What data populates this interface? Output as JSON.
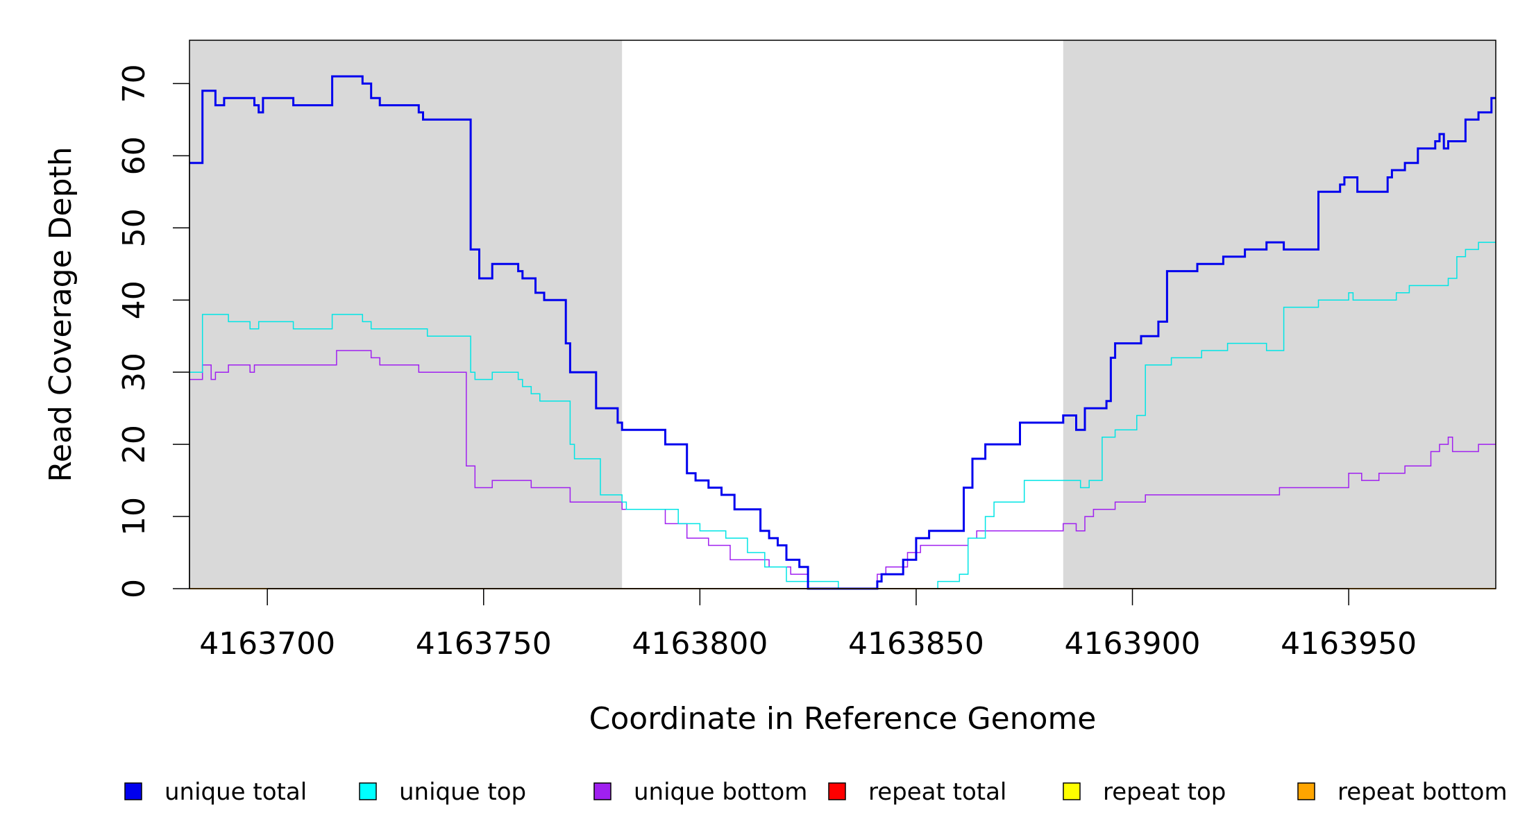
{
  "chart_data": {
    "type": "line",
    "title": "",
    "xlabel": "Coordinate in Reference Genome",
    "ylabel": "Read Coverage Depth",
    "xlim": [
      4163682,
      4163984
    ],
    "ylim": [
      0,
      76
    ],
    "x_ticks": [
      4163700,
      4163750,
      4163800,
      4163850,
      4163900,
      4163950
    ],
    "x_tick_labels": [
      "4163700",
      "4163750",
      "4163800",
      "4163850",
      "4163900",
      "4163950"
    ],
    "y_ticks": [
      0,
      10,
      20,
      30,
      40,
      50,
      60,
      70
    ],
    "y_tick_labels": [
      "0",
      "10",
      "20",
      "30",
      "40",
      "50",
      "60",
      "70"
    ],
    "shaded_regions": [
      {
        "from": 4163682,
        "to": 4163782,
        "color": "#d9d9d9"
      },
      {
        "from": 4163884,
        "to": 4163984,
        "color": "#d9d9d9"
      }
    ],
    "legend_position": "bottom",
    "series": [
      {
        "name": "unique total",
        "color": "#0000ee",
        "width": 3,
        "x": [
          4163682,
          4163685,
          4163688,
          4163690,
          4163691,
          4163697,
          4163698,
          4163699,
          4163706,
          4163715,
          4163722,
          4163724,
          4163726,
          4163730,
          4163735,
          4163736,
          4163737,
          4163747,
          4163749,
          4163752,
          4163758,
          4163759,
          4163762,
          4163764,
          4163769,
          4163770,
          4163776,
          4163781,
          4163782,
          4163783,
          4163792,
          4163797,
          4163799,
          4163802,
          4163805,
          4163808,
          4163814,
          4163816,
          4163818,
          4163820,
          4163823,
          4163825,
          4163832,
          4163841,
          4163842,
          4163847,
          4163850,
          4163853,
          4163860,
          4163861,
          4163863,
          4163866,
          4163874,
          4163884,
          4163887,
          4163889,
          4163894,
          4163895,
          4163896,
          4163898,
          4163902,
          4163906,
          4163908,
          4163915,
          4163921,
          4163926,
          4163931,
          4163935,
          4163943,
          4163948,
          4163949,
          4163952,
          4163959,
          4163960,
          4163963,
          4163966,
          4163970,
          4163971,
          4163972,
          4163973,
          4163977,
          4163980,
          4163983
        ],
        "y": [
          59,
          69,
          67,
          68,
          68,
          67,
          66,
          68,
          67,
          71,
          70,
          68,
          67,
          67,
          66,
          65,
          65,
          47,
          43,
          45,
          44,
          43,
          41,
          40,
          34,
          30,
          25,
          23,
          22,
          22,
          20,
          16,
          15,
          14,
          13,
          11,
          8,
          7,
          6,
          4,
          3,
          0,
          0,
          1,
          2,
          4,
          7,
          8,
          8,
          14,
          18,
          20,
          23,
          24,
          22,
          25,
          26,
          32,
          34,
          34,
          35,
          37,
          44,
          45,
          46,
          47,
          48,
          47,
          55,
          56,
          57,
          55,
          57,
          58,
          59,
          61,
          62,
          63,
          61,
          62,
          65,
          66,
          68
        ]
      },
      {
        "name": "unique top",
        "color": "#00e5e5",
        "width": 1.5,
        "x": [
          4163682,
          4163685,
          4163691,
          4163696,
          4163698,
          4163706,
          4163715,
          4163722,
          4163724,
          4163737,
          4163746,
          4163747,
          4163748,
          4163752,
          4163758,
          4163759,
          4163761,
          4163763,
          4163765,
          4163770,
          4163771,
          4163777,
          4163782,
          4163783,
          4163793,
          4163795,
          4163800,
          4163806,
          4163811,
          4163815,
          4163820,
          4163832,
          4163842,
          4163849,
          4163855,
          4163860,
          4163862,
          4163866,
          4163868,
          4163875,
          4163884,
          4163888,
          4163890,
          4163893,
          4163896,
          4163898,
          4163901,
          4163903,
          4163909,
          4163916,
          4163922,
          4163931,
          4163935,
          4163943,
          4163949,
          4163950,
          4163951,
          4163961,
          4163964,
          4163973,
          4163975,
          4163977,
          4163980,
          4163984
        ],
        "y": [
          30,
          38,
          37,
          36,
          37,
          36,
          38,
          37,
          36,
          35,
          35,
          30,
          29,
          30,
          29,
          28,
          27,
          26,
          26,
          20,
          18,
          13,
          12,
          11,
          11,
          9,
          8,
          7,
          5,
          3,
          1,
          0,
          0,
          0,
          1,
          2,
          7,
          10,
          12,
          15,
          15,
          14,
          15,
          21,
          22,
          22,
          24,
          31,
          32,
          33,
          34,
          33,
          39,
          40,
          40,
          41,
          40,
          41,
          42,
          43,
          46,
          47,
          48,
          48
        ]
      },
      {
        "name": "unique bottom",
        "color": "#a020f0",
        "width": 1.5,
        "x": [
          4163682,
          4163685,
          4163687,
          4163688,
          4163689,
          4163691,
          4163696,
          4163697,
          4163707,
          4163716,
          4163724,
          4163726,
          4163735,
          4163746,
          4163748,
          4163752,
          4163761,
          4163770,
          4163781,
          4163782,
          4163792,
          4163797,
          4163802,
          4163807,
          4163816,
          4163821,
          4163825,
          4163841,
          4163843,
          4163848,
          4163851,
          4163862,
          4163864,
          4163884,
          4163887,
          4163889,
          4163891,
          4163894,
          4163896,
          4163899,
          4163903,
          4163915,
          4163924,
          4163934,
          4163950,
          4163953,
          4163957,
          4163963,
          4163969,
          4163971,
          4163973,
          4163974,
          4163980,
          4163984
        ],
        "y": [
          29,
          31,
          29,
          30,
          30,
          31,
          30,
          31,
          31,
          33,
          32,
          31,
          30,
          17,
          14,
          15,
          14,
          12,
          12,
          11,
          9,
          7,
          6,
          4,
          3,
          2,
          0,
          2,
          3,
          5,
          6,
          7,
          8,
          9,
          8,
          10,
          11,
          11,
          12,
          12,
          13,
          13,
          13,
          14,
          16,
          15,
          16,
          17,
          19,
          20,
          21,
          19,
          20,
          20
        ]
      },
      {
        "name": "repeat total",
        "color": "#ff0000",
        "width": 1.5,
        "x": [
          4163682,
          4163984
        ],
        "y": [
          0,
          0
        ]
      },
      {
        "name": "repeat top",
        "color": "#ffff00",
        "width": 1.5,
        "x": [
          4163682,
          4163984
        ],
        "y": [
          0,
          0
        ]
      },
      {
        "name": "repeat bottom",
        "color": "#ffa500",
        "width": 2,
        "x": [
          4163682,
          4163984
        ],
        "y": [
          0,
          0
        ]
      }
    ]
  },
  "legend": [
    {
      "label": "unique total",
      "color": "#0000ee"
    },
    {
      "label": "unique top",
      "color": "#00ffff"
    },
    {
      "label": "unique bottom",
      "color": "#a020f0"
    },
    {
      "label": "repeat total",
      "color": "#ff0000"
    },
    {
      "label": "repeat top",
      "color": "#ffff00"
    },
    {
      "label": "repeat bottom",
      "color": "#ffa500"
    }
  ]
}
